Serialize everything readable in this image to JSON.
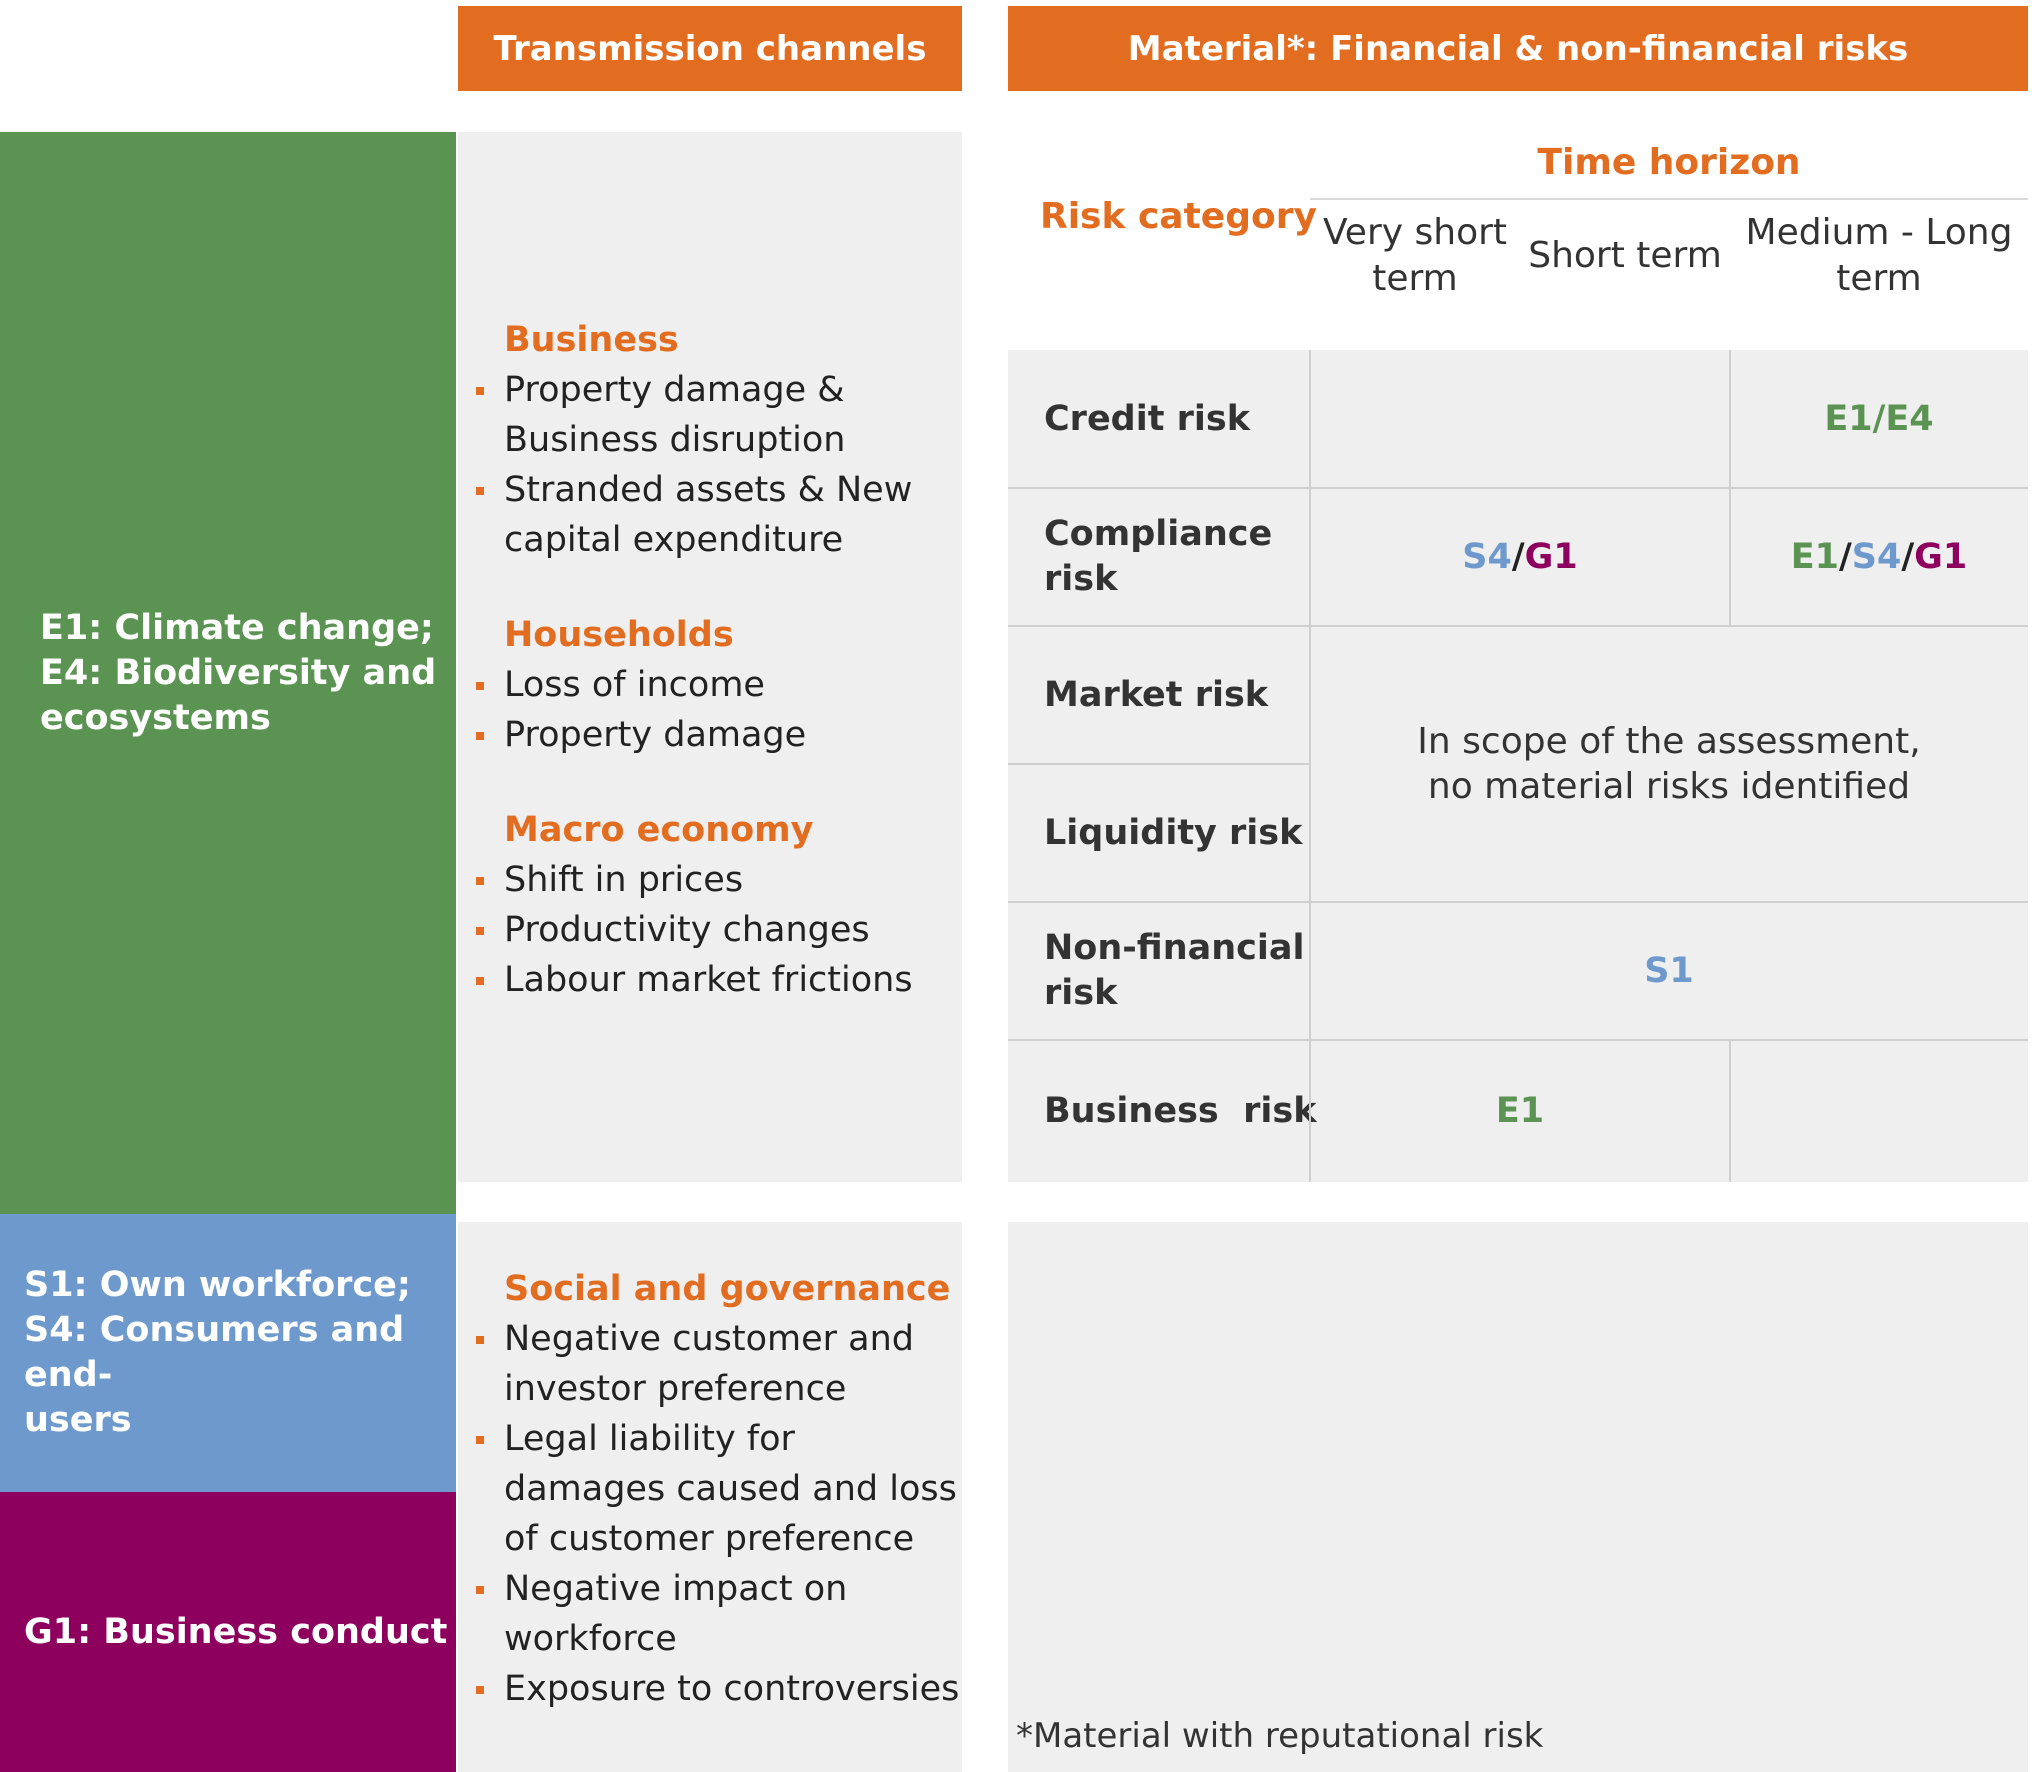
{
  "headers": {
    "transmission": "Transmission channels",
    "material": "Material*: Financial & non-financial risks"
  },
  "topics": {
    "environment": {
      "label": "E1: Climate change;\nE4: Biodiversity and\necosystems",
      "color": "#5b9452"
    },
    "social": {
      "label": "S1: Own workforce;\nS4: Consumers and end-\nusers",
      "color": "#6d99cc"
    },
    "governance": {
      "label": "G1: Business conduct",
      "color": "#8e005d"
    }
  },
  "channels_env": [
    {
      "title": "Business",
      "items": [
        "Property damage & Business disruption",
        "Stranded assets & New capital expenditure"
      ]
    },
    {
      "title": "Households",
      "items": [
        "Loss of income",
        "Property damage"
      ]
    },
    {
      "title": "Macro economy",
      "items": [
        "Shift in prices",
        "Productivity changes",
        "Labour market frictions"
      ]
    }
  ],
  "channels_social": {
    "title": "Social and governance",
    "items": [
      "Negative customer and investor preference",
      "Legal liability for damages caused and loss of customer preference",
      "Negative impact on workforce",
      "Exposure to controversies"
    ]
  },
  "matrix": {
    "risk_category_label": "Risk category",
    "time_horizon_label": "Time horizon",
    "columns": [
      "Very short\nterm",
      "Short term",
      "Medium - Long\nterm"
    ],
    "rows": [
      "Credit risk",
      "Compliance\nrisk",
      "Market risk",
      "Liquidity risk",
      "Non-financial\nrisk",
      "Business  risk"
    ],
    "cells": {
      "credit_medium_long": "E1/E4",
      "compliance_short": [
        "S4",
        "/",
        "G1"
      ],
      "compliance_medium_long": [
        "E1",
        "/",
        "S4",
        "/",
        "G1"
      ],
      "market_liquidity_note": "In scope of the assessment,\nno material risks identified",
      "nonfinancial": "S1",
      "business_short": "E1"
    },
    "code_colors": {
      "E": "#5b9452",
      "S": "#6d99cc",
      "G": "#8e005d",
      "sep": "#222222"
    }
  },
  "footnote": "*Material with reputational risk"
}
